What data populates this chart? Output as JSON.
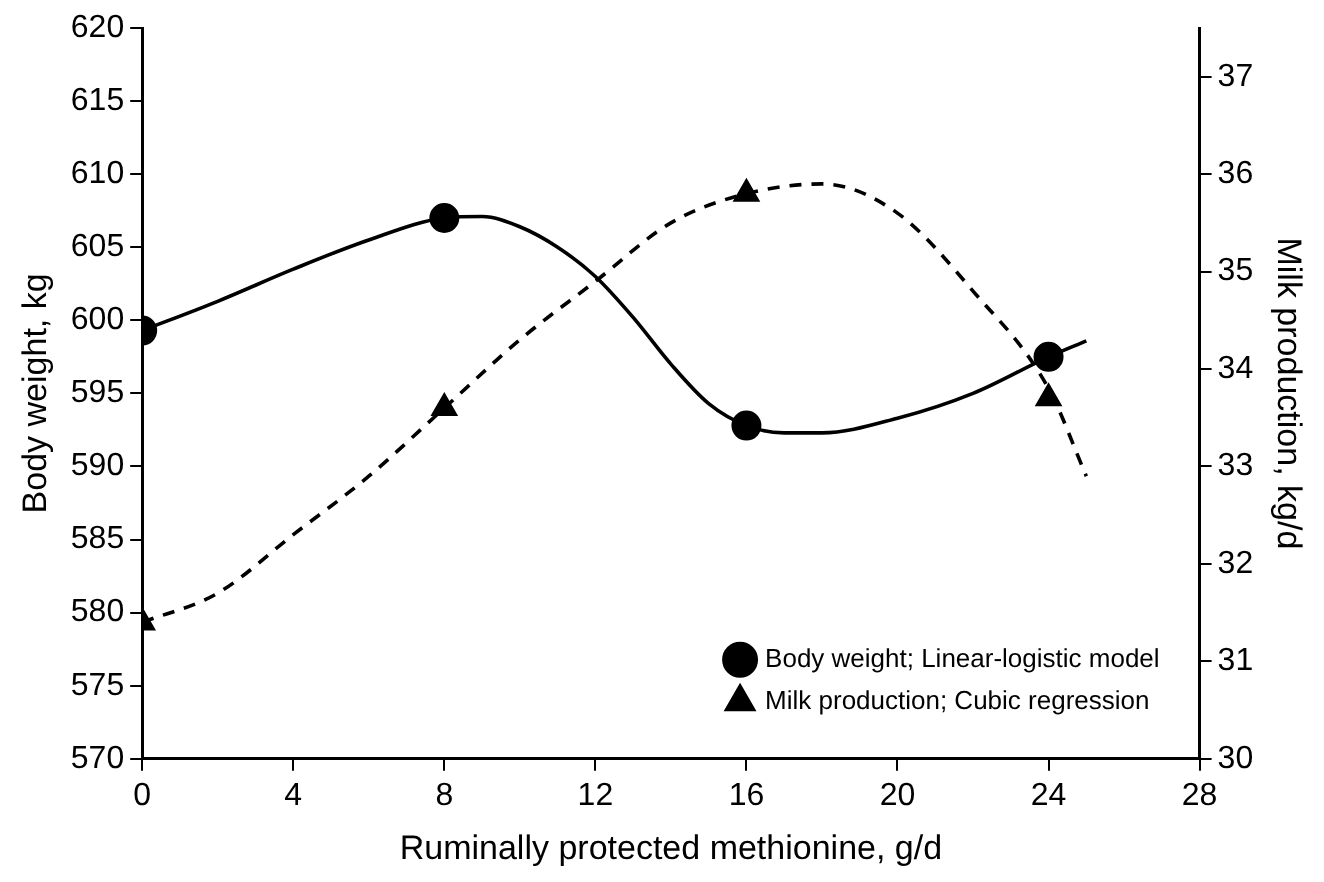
{
  "chart_data": {
    "type": "scatter",
    "xlabel": "Ruminally protected methionine, g/d",
    "ylabel": "Body weight, kg",
    "y2label": "Milk production, kg/d",
    "xlim": [
      0,
      28
    ],
    "xticks": [
      0,
      4,
      8,
      12,
      16,
      20,
      24,
      28
    ],
    "ylim": [
      570,
      620
    ],
    "yticks": [
      570,
      575,
      580,
      585,
      590,
      595,
      600,
      605,
      610,
      615,
      620
    ],
    "y2lim": [
      30,
      37.5
    ],
    "y2ticks": [
      30,
      31,
      32,
      33,
      34,
      35,
      36,
      37
    ],
    "grid": false,
    "legend": "bottom right",
    "series": [
      {
        "name": "Body weight; Linear-logistic model",
        "marker": "circle",
        "color": "#000000",
        "x": [
          0,
          8,
          16,
          24
        ],
        "values": [
          599.3,
          607,
          592.8,
          597.5
        ]
      },
      {
        "type": "line",
        "marker": "none",
        "line_style": "solid",
        "color": "#000000",
        "x": [
          0,
          2,
          4,
          6,
          8,
          9,
          10,
          11,
          12,
          13,
          14,
          15,
          16,
          17,
          18,
          20,
          22,
          24,
          25
        ],
        "values": [
          599.3,
          601.3,
          603.5,
          605.5,
          607,
          607.1,
          606.4,
          605,
          603,
          600.2,
          597,
          594.3,
          592.8,
          592.3,
          592.3,
          593.3,
          595,
          597.5,
          598.6
        ]
      },
      {
        "name": "Milk production; Cubic regression",
        "marker": "triangle",
        "axis": "y2",
        "color": "#000000",
        "x": [
          0,
          8,
          16,
          24
        ],
        "values": [
          31.4,
          33.6,
          35.8,
          33.7
        ]
      },
      {
        "type": "line",
        "marker": "none",
        "line_style": "dashed",
        "axis": "y2",
        "color": "#000000",
        "x": [
          0,
          2,
          4,
          6,
          8,
          10,
          12,
          14,
          16,
          18,
          20,
          22,
          24,
          25
        ],
        "values": [
          31.4,
          31.7,
          32.3,
          32.9,
          33.6,
          34.3,
          34.9,
          35.5,
          35.8,
          35.9,
          35.6,
          34.8,
          33.8,
          32.9
        ]
      }
    ]
  }
}
